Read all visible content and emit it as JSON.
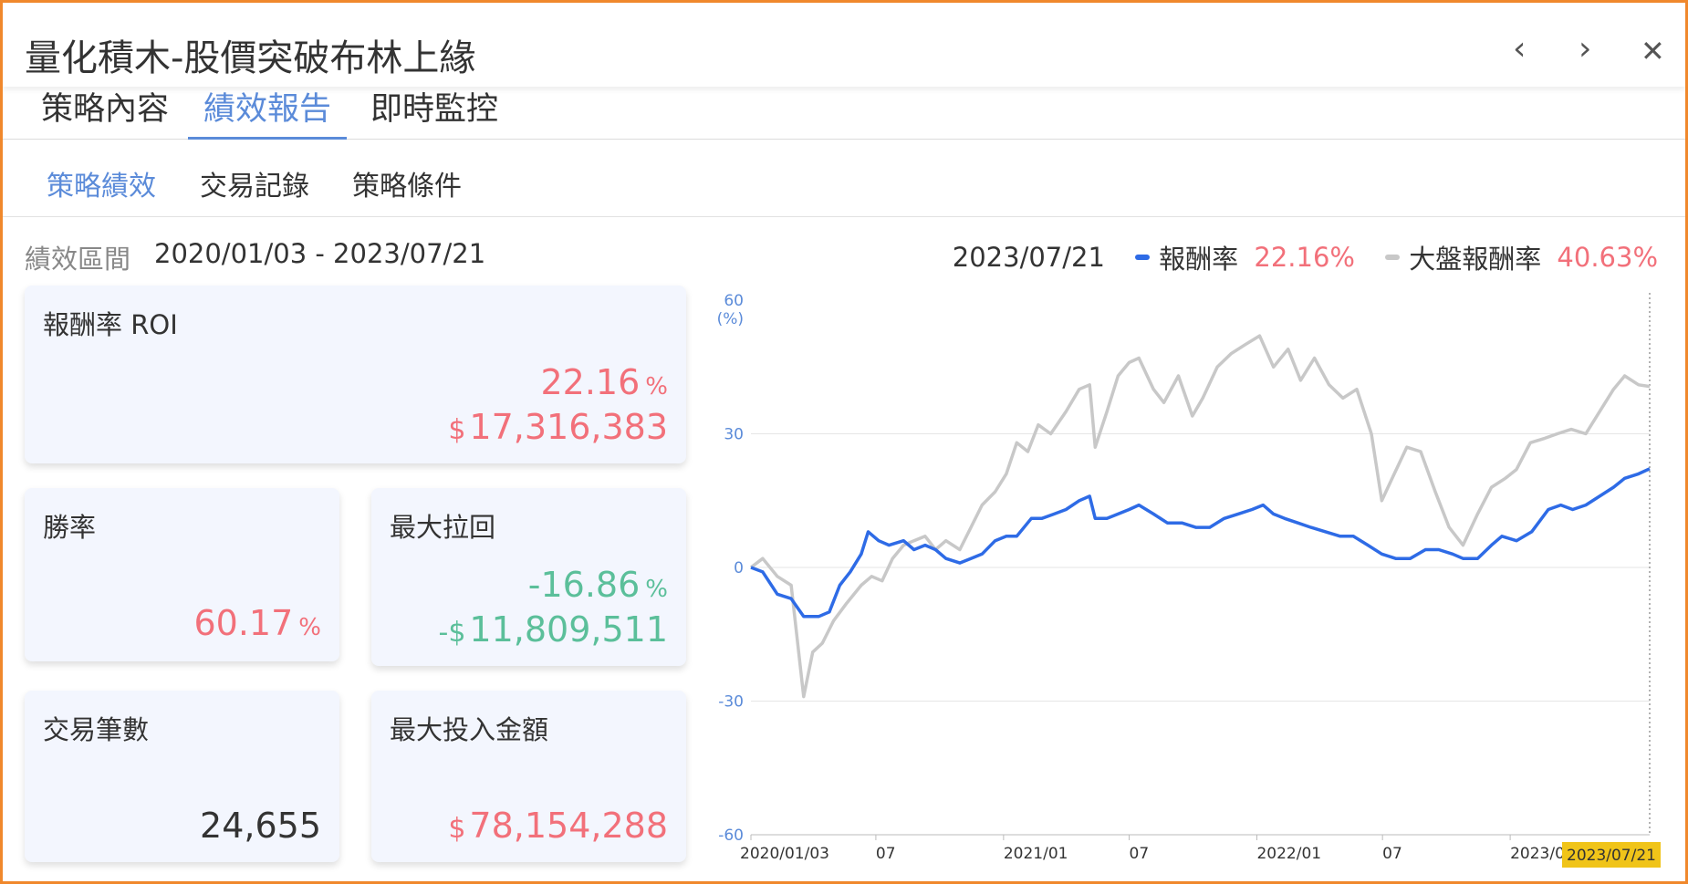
{
  "window": {
    "title": "量化積木-股價突破布林上緣",
    "prev_icon": "‹",
    "next_icon": "›",
    "close_icon": "✕"
  },
  "tabs": [
    {
      "label": "策略內容",
      "active": false
    },
    {
      "label": "績效報告",
      "active": true
    },
    {
      "label": "即時監控",
      "active": false
    }
  ],
  "subtabs": [
    {
      "label": "策略績效",
      "active": true
    },
    {
      "label": "交易記錄",
      "active": false
    },
    {
      "label": "策略條件",
      "active": false
    }
  ],
  "period": {
    "label": "績效區間",
    "value": "2020/01/03 - 2023/07/21"
  },
  "legend": {
    "date": "2023/07/21",
    "strategy_label": "報酬率",
    "strategy_value": "22.16%",
    "market_label": "大盤報酬率",
    "market_value": "40.63%"
  },
  "cards": {
    "roi": {
      "label": "報酬率 ROI",
      "percent": "22.16",
      "unit": "%",
      "dollar_sign": "$",
      "amount": "17,316,383"
    },
    "win_rate": {
      "label": "勝率",
      "percent": "60.17",
      "unit": "%"
    },
    "max_drawdown": {
      "label": "最大拉回",
      "percent": "-16.86",
      "unit": "%",
      "dollar_sign": "-$",
      "amount": "11,809,511"
    },
    "trade_count": {
      "label": "交易筆數",
      "value": "24,655"
    },
    "max_investment": {
      "label": "最大投入金額",
      "dollar_sign": "$",
      "amount": "78,154,288"
    }
  },
  "colors": {
    "accent": "#5b8bd9",
    "positive": "#f2707a",
    "negative": "#5bbf9a",
    "strategy_line": "#2e6be6",
    "market_line": "#c8c8c8",
    "highlight_label": "#f0c419",
    "border": "#f0882c"
  },
  "chart_data": {
    "type": "line",
    "y_unit_label": "(%)",
    "ylim": [
      -60,
      60
    ],
    "yticks": [
      60,
      30,
      0,
      -30,
      -60
    ],
    "xlim": [
      "2020-01-03",
      "2023-07-21"
    ],
    "xticks": [
      {
        "date": "2020-01-03",
        "label": "2020/01/03"
      },
      {
        "date": "2020-07-01",
        "label": "07"
      },
      {
        "date": "2021-01-01",
        "label": "2021/01"
      },
      {
        "date": "2021-07-01",
        "label": "07"
      },
      {
        "date": "2022-01-01",
        "label": "2022/01"
      },
      {
        "date": "2022-07-01",
        "label": "07"
      },
      {
        "date": "2023-01-01",
        "label": "2023/0"
      }
    ],
    "highlight_date_label": "2023/07/21",
    "grid": true,
    "series": [
      {
        "name": "報酬率",
        "color": "#2e6be6",
        "points": [
          [
            "2020-01-03",
            0
          ],
          [
            "2020-01-20",
            -1
          ],
          [
            "2020-02-10",
            -6
          ],
          [
            "2020-03-01",
            -7
          ],
          [
            "2020-03-19",
            -11
          ],
          [
            "2020-04-10",
            -11
          ],
          [
            "2020-04-25",
            -10
          ],
          [
            "2020-05-10",
            -4
          ],
          [
            "2020-05-25",
            -1
          ],
          [
            "2020-06-10",
            3
          ],
          [
            "2020-06-20",
            8
          ],
          [
            "2020-07-05",
            6
          ],
          [
            "2020-07-20",
            5
          ],
          [
            "2020-08-10",
            6
          ],
          [
            "2020-08-25",
            4
          ],
          [
            "2020-09-10",
            5
          ],
          [
            "2020-09-25",
            4
          ],
          [
            "2020-10-10",
            2
          ],
          [
            "2020-10-30",
            1
          ],
          [
            "2020-11-15",
            2
          ],
          [
            "2020-12-01",
            3
          ],
          [
            "2020-12-20",
            6
          ],
          [
            "2021-01-05",
            7
          ],
          [
            "2021-01-20",
            7
          ],
          [
            "2021-02-10",
            11
          ],
          [
            "2021-02-25",
            11
          ],
          [
            "2021-03-15",
            12
          ],
          [
            "2021-04-01",
            13
          ],
          [
            "2021-04-20",
            15
          ],
          [
            "2021-05-05",
            16
          ],
          [
            "2021-05-13",
            11
          ],
          [
            "2021-05-30",
            11
          ],
          [
            "2021-06-15",
            12
          ],
          [
            "2021-07-01",
            13
          ],
          [
            "2021-07-15",
            14
          ],
          [
            "2021-08-05",
            12
          ],
          [
            "2021-08-25",
            10
          ],
          [
            "2021-09-15",
            10
          ],
          [
            "2021-10-05",
            9
          ],
          [
            "2021-10-25",
            9
          ],
          [
            "2021-11-15",
            11
          ],
          [
            "2021-12-05",
            12
          ],
          [
            "2021-12-25",
            13
          ],
          [
            "2022-01-10",
            14
          ],
          [
            "2022-01-25",
            12
          ],
          [
            "2022-02-10",
            11
          ],
          [
            "2022-03-01",
            10
          ],
          [
            "2022-03-20",
            9
          ],
          [
            "2022-04-10",
            8
          ],
          [
            "2022-05-01",
            7
          ],
          [
            "2022-05-20",
            7
          ],
          [
            "2022-06-10",
            5
          ],
          [
            "2022-06-30",
            3
          ],
          [
            "2022-07-20",
            2
          ],
          [
            "2022-08-10",
            2
          ],
          [
            "2022-09-01",
            4
          ],
          [
            "2022-09-20",
            4
          ],
          [
            "2022-10-10",
            3
          ],
          [
            "2022-10-25",
            2
          ],
          [
            "2022-11-15",
            2
          ],
          [
            "2022-12-05",
            5
          ],
          [
            "2022-12-20",
            7
          ],
          [
            "2023-01-10",
            6
          ],
          [
            "2023-02-01",
            8
          ],
          [
            "2023-02-25",
            13
          ],
          [
            "2023-03-15",
            14
          ],
          [
            "2023-04-01",
            13
          ],
          [
            "2023-04-20",
            14
          ],
          [
            "2023-05-10",
            16
          ],
          [
            "2023-05-30",
            18
          ],
          [
            "2023-06-15",
            20
          ],
          [
            "2023-07-05",
            21
          ],
          [
            "2023-07-21",
            22.16
          ]
        ]
      },
      {
        "name": "大盤報酬率",
        "color": "#c8c8c8",
        "points": [
          [
            "2020-01-03",
            0
          ],
          [
            "2020-01-20",
            2
          ],
          [
            "2020-02-10",
            -2
          ],
          [
            "2020-03-01",
            -4
          ],
          [
            "2020-03-19",
            -29
          ],
          [
            "2020-04-01",
            -19
          ],
          [
            "2020-04-15",
            -17
          ],
          [
            "2020-05-01",
            -12
          ],
          [
            "2020-05-20",
            -8
          ],
          [
            "2020-06-10",
            -4
          ],
          [
            "2020-06-25",
            -2
          ],
          [
            "2020-07-10",
            -3
          ],
          [
            "2020-07-25",
            2
          ],
          [
            "2020-08-10",
            5
          ],
          [
            "2020-08-25",
            6
          ],
          [
            "2020-09-10",
            7
          ],
          [
            "2020-09-25",
            4
          ],
          [
            "2020-10-10",
            6
          ],
          [
            "2020-10-30",
            4
          ],
          [
            "2020-11-15",
            9
          ],
          [
            "2020-12-01",
            14
          ],
          [
            "2020-12-20",
            17
          ],
          [
            "2021-01-05",
            21
          ],
          [
            "2021-01-20",
            28
          ],
          [
            "2021-02-05",
            26
          ],
          [
            "2021-02-20",
            32
          ],
          [
            "2021-03-10",
            30
          ],
          [
            "2021-04-01",
            35
          ],
          [
            "2021-04-20",
            40
          ],
          [
            "2021-05-05",
            41
          ],
          [
            "2021-05-13",
            27
          ],
          [
            "2021-05-30",
            35
          ],
          [
            "2021-06-15",
            43
          ],
          [
            "2021-07-01",
            46
          ],
          [
            "2021-07-15",
            47
          ],
          [
            "2021-08-05",
            40
          ],
          [
            "2021-08-20",
            37
          ],
          [
            "2021-09-10",
            43
          ],
          [
            "2021-09-30",
            34
          ],
          [
            "2021-10-15",
            38
          ],
          [
            "2021-11-05",
            45
          ],
          [
            "2021-11-25",
            48
          ],
          [
            "2021-12-15",
            50
          ],
          [
            "2022-01-05",
            52
          ],
          [
            "2022-01-25",
            45
          ],
          [
            "2022-02-15",
            49
          ],
          [
            "2022-03-05",
            42
          ],
          [
            "2022-03-25",
            47
          ],
          [
            "2022-04-15",
            41
          ],
          [
            "2022-05-05",
            38
          ],
          [
            "2022-05-25",
            40
          ],
          [
            "2022-06-15",
            30
          ],
          [
            "2022-06-30",
            15
          ],
          [
            "2022-07-15",
            20
          ],
          [
            "2022-08-05",
            27
          ],
          [
            "2022-08-25",
            26
          ],
          [
            "2022-09-15",
            17
          ],
          [
            "2022-10-05",
            9
          ],
          [
            "2022-10-25",
            5
          ],
          [
            "2022-11-15",
            12
          ],
          [
            "2022-12-05",
            18
          ],
          [
            "2022-12-25",
            20
          ],
          [
            "2023-01-10",
            22
          ],
          [
            "2023-01-30",
            28
          ],
          [
            "2023-02-20",
            29
          ],
          [
            "2023-03-10",
            30
          ],
          [
            "2023-03-30",
            31
          ],
          [
            "2023-04-20",
            30
          ],
          [
            "2023-05-10",
            35
          ],
          [
            "2023-05-30",
            40
          ],
          [
            "2023-06-15",
            43
          ],
          [
            "2023-07-05",
            41
          ],
          [
            "2023-07-21",
            40.63
          ]
        ]
      }
    ]
  }
}
